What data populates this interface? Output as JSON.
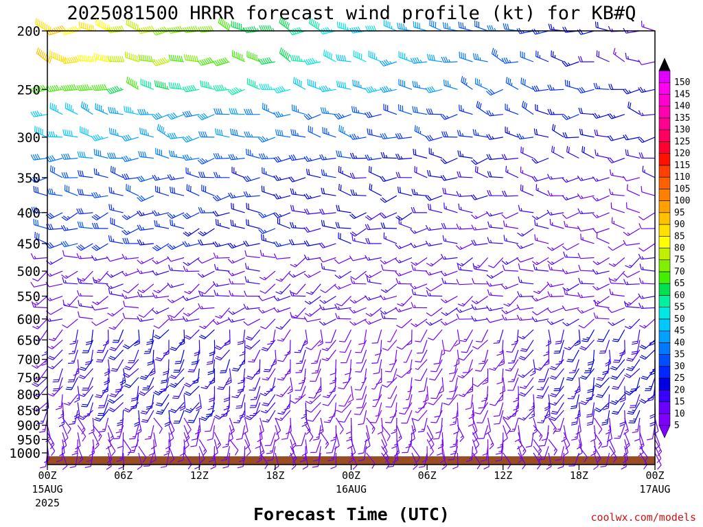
{
  "chart_data": {
    "type": "wind-barb-time-height",
    "title": "2025081500 HRRR forecast wind profile (kt) for KB#Q",
    "xlabel": "Forecast Time (UTC)",
    "ylabel": "",
    "credit": "coolwx.com/models",
    "y_ticks": [
      200,
      250,
      300,
      350,
      400,
      450,
      500,
      550,
      600,
      650,
      700,
      750,
      800,
      850,
      900,
      950,
      1000
    ],
    "ylim": [
      1040,
      190
    ],
    "y_scale": "log-pressure",
    "x_ticks": [
      {
        "label": "00Z",
        "sub": [
          "15AUG",
          "2025"
        ]
      },
      {
        "label": "06Z",
        "sub": []
      },
      {
        "label": "12Z",
        "sub": []
      },
      {
        "label": "18Z",
        "sub": []
      },
      {
        "label": "00Z",
        "sub": [
          "16AUG"
        ]
      },
      {
        "label": "06Z",
        "sub": []
      },
      {
        "label": "12Z",
        "sub": []
      },
      {
        "label": "18Z",
        "sub": []
      },
      {
        "label": "00Z",
        "sub": [
          "17AUG"
        ]
      }
    ],
    "xlim_hours": [
      0,
      48
    ],
    "colorbar": {
      "values": [
        5,
        10,
        15,
        20,
        25,
        30,
        35,
        40,
        45,
        50,
        55,
        60,
        65,
        70,
        75,
        80,
        85,
        90,
        95,
        100,
        105,
        110,
        115,
        120,
        125,
        130,
        135,
        140,
        145,
        150
      ],
      "colors": [
        "#8000ff",
        "#6a00ff",
        "#3a00ff",
        "#0000e0",
        "#0028ff",
        "#0050ff",
        "#0078ff",
        "#00a0ff",
        "#00c8ff",
        "#00e6e0",
        "#00f0a0",
        "#00e050",
        "#40f000",
        "#80f000",
        "#c0f000",
        "#ffff00",
        "#ffe000",
        "#ffc000",
        "#ffa000",
        "#ff8000",
        "#ff6000",
        "#ff4000",
        "#ff1000",
        "#ff0030",
        "#ff0060",
        "#ff0090",
        "#ff00b0",
        "#ff00d0",
        "#ff00f0",
        "#e000ff"
      ]
    },
    "ground_color": "#9a4c24",
    "grid": false,
    "legend_placement": "right"
  }
}
